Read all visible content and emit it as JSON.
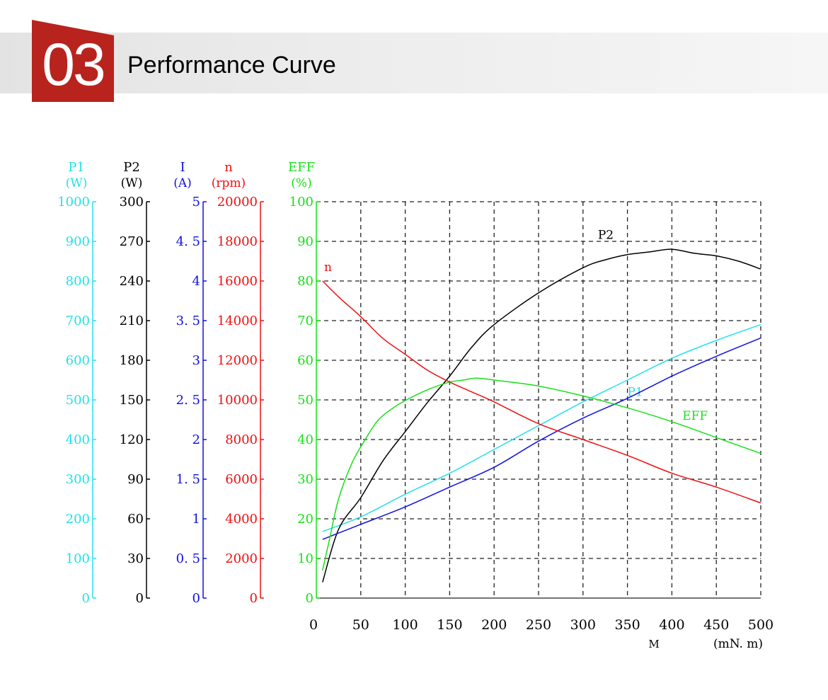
{
  "header": {
    "section_number": "03",
    "section_title": "Performance Curve",
    "badge_color": "#b8231e"
  },
  "chart_data": {
    "type": "line",
    "x": {
      "label": "M",
      "unit": "(mN. m)",
      "range": [
        0,
        500
      ],
      "ticks": [
        "0",
        "50",
        "100",
        "150",
        "200",
        "250",
        "300",
        "350",
        "400",
        "450",
        "500"
      ]
    },
    "grid": true,
    "axes": [
      {
        "key": "P1",
        "name": "P1",
        "unit": "(W)",
        "color": "#25e0e8",
        "range": [
          0,
          1000
        ],
        "ticks": [
          "0",
          "100",
          "200",
          "300",
          "400",
          "500",
          "600",
          "700",
          "800",
          "900",
          "1000"
        ]
      },
      {
        "key": "P2",
        "name": "P2",
        "unit": "(W)",
        "color": "#000000",
        "range": [
          0,
          300
        ],
        "ticks": [
          "0",
          "30",
          "60",
          "90",
          "120",
          "150",
          "180",
          "210",
          "240",
          "270",
          "300"
        ]
      },
      {
        "key": "I",
        "name": "I",
        "unit": "(A)",
        "color": "#1010e0",
        "range": [
          0,
          5
        ],
        "ticks": [
          "0",
          "0. 5",
          "1",
          "1. 5",
          "2",
          "2. 5",
          "3",
          "3. 5",
          "4",
          "4. 5",
          "5"
        ]
      },
      {
        "key": "n",
        "name": "n",
        "unit": "(rpm)",
        "color": "#ee1010",
        "range": [
          0,
          20000
        ],
        "ticks": [
          "0",
          "2000",
          "4000",
          "6000",
          "8000",
          "10000",
          "12000",
          "14000",
          "16000",
          "18000",
          "20000"
        ]
      },
      {
        "key": "EFF",
        "name": "EFF",
        "unit": "(%)",
        "color": "#18e018",
        "range": [
          0,
          100
        ],
        "ticks": [
          "0",
          "10",
          "20",
          "30",
          "40",
          "50",
          "60",
          "70",
          "80",
          "90",
          "100"
        ]
      }
    ],
    "series": [
      {
        "name": "P1",
        "axis": "P1",
        "color": "#25e0e8",
        "label": "P1",
        "label_at": [
          345,
          510
        ],
        "x": [
          7,
          50,
          100,
          150,
          200,
          250,
          300,
          350,
          400,
          450,
          500
        ],
        "y": [
          168,
          205,
          262,
          315,
          375,
          435,
          495,
          550,
          605,
          650,
          690
        ]
      },
      {
        "name": "P2",
        "axis": "P2",
        "color": "#000000",
        "label": "P2",
        "label_at": [
          312,
          272
        ],
        "x": [
          7,
          25,
          50,
          75,
          100,
          125,
          150,
          175,
          200,
          250,
          300,
          325,
          350,
          375,
          400,
          425,
          450,
          475,
          500
        ],
        "y": [
          12,
          52,
          76,
          104,
          126,
          148,
          168,
          190,
          207,
          231,
          250,
          256,
          260,
          262,
          264,
          261,
          259,
          255,
          249
        ]
      },
      {
        "name": "I",
        "axis": "I",
        "color": "#1010e0",
        "label": "I",
        "label_at": [
          243,
          425
        ],
        "x": [
          7,
          50,
          100,
          150,
          200,
          250,
          300,
          350,
          400,
          450,
          500
        ],
        "y": [
          0.74,
          0.93,
          1.15,
          1.4,
          1.65,
          1.98,
          2.27,
          2.52,
          2.8,
          3.05,
          3.28
        ]
      },
      {
        "name": "n",
        "axis": "n",
        "color": "#ee1010",
        "label": "n",
        "label_at": [
          4,
          16500
        ],
        "x": [
          7,
          25,
          50,
          75,
          100,
          125,
          150,
          175,
          200,
          250,
          300,
          350,
          400,
          450,
          500
        ],
        "y": [
          16000,
          15200,
          14200,
          13100,
          12300,
          11500,
          10900,
          10400,
          9900,
          8800,
          8000,
          7200,
          6300,
          5600,
          4800
        ],
        "show_end_label": true
      },
      {
        "name": "EFF",
        "axis": "EFF",
        "color": "#18e018",
        "label": "EFF",
        "label_at": [
          407,
          45
        ],
        "x": [
          7,
          15,
          25,
          40,
          55,
          70,
          90,
          110,
          130,
          150,
          165,
          180,
          200,
          250,
          300,
          350,
          400,
          450,
          500
        ],
        "y": [
          7,
          15,
          25,
          34,
          40,
          45,
          48.5,
          51,
          53,
          54.5,
          55,
          55.5,
          55,
          53.5,
          51,
          48,
          44.5,
          40.5,
          36.5
        ]
      }
    ]
  }
}
